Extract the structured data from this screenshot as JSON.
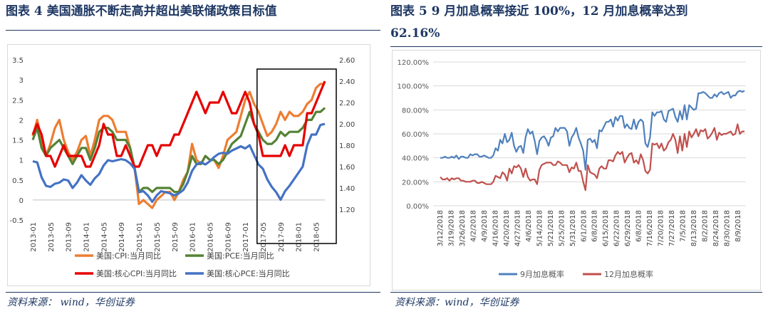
{
  "left": {
    "caption": "图表 4   美国通胀不断走高并超出美联储政策目标值",
    "source": "资料来源： wind，华创证券"
  },
  "right": {
    "caption_line1": "图表 5 9 月加息概率接近 100%，12 月加息概率达到",
    "caption_line2": "62.16%",
    "source": "资料来源：wind，华创证券"
  },
  "chart_data": [
    {
      "type": "line",
      "x": [
        "2013-01",
        "2013-02",
        "2013-03",
        "2013-04",
        "2013-05",
        "2013-06",
        "2013-07",
        "2013-08",
        "2013-09",
        "2013-10",
        "2013-11",
        "2013-12",
        "2014-01",
        "2014-02",
        "2014-03",
        "2014-04",
        "2014-05",
        "2014-06",
        "2014-07",
        "2014-08",
        "2014-09",
        "2014-10",
        "2014-11",
        "2014-12",
        "2015-01",
        "2015-02",
        "2015-03",
        "2015-04",
        "2015-05",
        "2015-06",
        "2015-07",
        "2015-08",
        "2015-09",
        "2015-10",
        "2015-11",
        "2015-12",
        "2016-01",
        "2016-02",
        "2016-03",
        "2016-04",
        "2016-05",
        "2016-06",
        "2016-07",
        "2016-08",
        "2016-09",
        "2016-10",
        "2016-11",
        "2016-12",
        "2017-01",
        "2017-02",
        "2017-03",
        "2017-04",
        "2017-05",
        "2017-06",
        "2017-07",
        "2017-08",
        "2017-09",
        "2017-10",
        "2017-11",
        "2017-12",
        "2018-01",
        "2018-02",
        "2018-03",
        "2018-04",
        "2018-05",
        "2018-06",
        "2018-07"
      ],
      "x_tick_labels": [
        "2013-01",
        "2013-05",
        "2013-09",
        "2014-01",
        "2014-05",
        "2014-09",
        "2015-01",
        "2015-05",
        "2015-09",
        "2016-01",
        "2016-05",
        "2016-09",
        "2017-01",
        "2017-05",
        "2017-09",
        "2018-01",
        "2018-05"
      ],
      "y_left_ticks": [
        "-0.5",
        "0",
        "0.5",
        "1",
        "1.5",
        "2",
        "2.5",
        "3",
        "3.5"
      ],
      "y_right_ticks": [
        "1.20",
        "1.40",
        "1.60",
        "1.80",
        "2.00",
        "2.20",
        "2.40",
        "2.60"
      ],
      "ylim_left": [
        -0.5,
        3.5
      ],
      "ylim_right": [
        1.1,
        2.6
      ],
      "legend_position": "bottom",
      "highlight_box_from": "2017-04",
      "series": [
        {
          "name": "美国:CPI:当月同比",
          "axis": "left",
          "color": "#ed7d31",
          "values": [
            1.6,
            2.0,
            1.5,
            1.1,
            1.4,
            1.8,
            2.0,
            1.5,
            1.2,
            1.0,
            1.2,
            1.5,
            1.6,
            1.1,
            1.5,
            2.0,
            2.1,
            2.1,
            2.0,
            1.7,
            1.7,
            1.7,
            1.3,
            0.8,
            -0.1,
            0.0,
            -0.1,
            -0.2,
            0.0,
            0.1,
            0.2,
            0.2,
            0.0,
            0.2,
            0.5,
            0.7,
            1.4,
            1.0,
            0.9,
            1.1,
            1.0,
            1.0,
            0.8,
            1.1,
            1.5,
            1.6,
            1.7,
            2.1,
            2.5,
            2.7,
            2.4,
            2.2,
            1.9,
            1.6,
            1.7,
            1.9,
            2.2,
            2.0,
            2.2,
            2.1,
            2.1,
            2.2,
            2.4,
            2.5,
            2.8,
            2.9,
            2.9
          ]
        },
        {
          "name": "美国:PCE:当月同比",
          "axis": "left",
          "color": "#548235",
          "values": [
            1.5,
            1.8,
            1.3,
            1.1,
            1.3,
            1.4,
            1.5,
            1.3,
            1.1,
            0.9,
            1.1,
            1.3,
            1.3,
            1.0,
            1.3,
            1.7,
            1.8,
            1.8,
            1.7,
            1.5,
            1.5,
            1.5,
            1.3,
            0.8,
            0.2,
            0.3,
            0.3,
            0.2,
            0.3,
            0.3,
            0.3,
            0.3,
            0.2,
            0.2,
            0.4,
            0.7,
            1.1,
            0.9,
            0.9,
            1.1,
            1.0,
            1.0,
            0.9,
            1.0,
            1.2,
            1.4,
            1.5,
            1.6,
            1.9,
            2.2,
            1.9,
            1.7,
            1.5,
            1.4,
            1.4,
            1.5,
            1.7,
            1.6,
            1.7,
            1.7,
            1.7,
            1.8,
            2.0,
            2.0,
            2.2,
            2.2,
            2.3
          ]
        },
        {
          "name": "美国:核心CPI:当月同比",
          "axis": "right",
          "color": "#e60000",
          "values": [
            1.9,
            2.0,
            1.9,
            1.7,
            1.7,
            1.6,
            1.7,
            1.8,
            1.7,
            1.7,
            1.7,
            1.7,
            1.6,
            1.6,
            1.7,
            1.8,
            2.0,
            1.9,
            1.9,
            1.7,
            1.7,
            1.8,
            1.7,
            1.6,
            1.6,
            1.7,
            1.8,
            1.8,
            1.7,
            1.8,
            1.8,
            1.8,
            1.9,
            1.9,
            2.0,
            2.1,
            2.2,
            2.3,
            2.2,
            2.1,
            2.2,
            2.2,
            2.2,
            2.3,
            2.2,
            2.1,
            2.1,
            2.2,
            2.3,
            2.2,
            2.0,
            1.9,
            1.7,
            1.7,
            1.7,
            1.7,
            1.7,
            1.8,
            1.7,
            1.8,
            1.8,
            1.8,
            2.1,
            2.1,
            2.2,
            2.3,
            2.4
          ]
        },
        {
          "name": "美国:核心PCE:当月同比",
          "axis": "right",
          "color": "#4472c4",
          "values": [
            1.65,
            1.64,
            1.5,
            1.42,
            1.41,
            1.44,
            1.45,
            1.48,
            1.47,
            1.4,
            1.45,
            1.52,
            1.47,
            1.43,
            1.49,
            1.53,
            1.61,
            1.66,
            1.65,
            1.66,
            1.67,
            1.66,
            1.63,
            1.58,
            1.36,
            1.37,
            1.33,
            1.27,
            1.33,
            1.37,
            1.36,
            1.35,
            1.33,
            1.35,
            1.38,
            1.45,
            1.56,
            1.62,
            1.64,
            1.62,
            1.65,
            1.69,
            1.72,
            1.73,
            1.72,
            1.75,
            1.77,
            1.79,
            1.77,
            1.8,
            1.71,
            1.62,
            1.58,
            1.48,
            1.41,
            1.36,
            1.29,
            1.37,
            1.42,
            1.48,
            1.54,
            1.6,
            1.8,
            1.9,
            1.9,
            1.99,
            2.0
          ]
        }
      ]
    },
    {
      "type": "line",
      "x_tick_labels": [
        "3/12/2018",
        "3/19/2018",
        "3/26/2018",
        "4/2/2018",
        "4/9/2018",
        "4/16/2018",
        "4/20/2018",
        "4/27/2018",
        "4/6/2018",
        "5/14/2018",
        "5/21/2018",
        "5/25/2018",
        "5/31/2018",
        "6/1/2018",
        "6/8/2018",
        "6/15/2018",
        "6/22/2018",
        "6/29/2018",
        "6/8/2018",
        "7/16/2018",
        "7/20/2018",
        "7/27/2018",
        "7/5/2018",
        "8/13/2018",
        "8/2/2018",
        "8/24/2018",
        "8/30/2018",
        "8/9/2018"
      ],
      "y_ticks": [
        "0.00%",
        "20.00%",
        "40.00%",
        "60.00%",
        "80.00%",
        "100.00%",
        "120.00%"
      ],
      "ylim": [
        0,
        120
      ],
      "grid": true,
      "legend_position": "bottom",
      "series": [
        {
          "name": "9月加息概率",
          "color": "#4f81bd",
          "values": [
            40,
            40,
            41,
            40,
            40,
            41,
            40,
            42,
            39,
            41,
            41,
            40,
            40,
            43,
            42,
            43,
            43,
            41,
            41,
            42,
            41,
            40,
            40,
            42,
            48,
            46,
            55,
            52,
            60,
            53,
            55,
            61,
            50,
            45,
            49,
            50,
            44,
            57,
            64,
            60,
            62,
            54,
            43,
            54,
            57,
            58,
            55,
            50,
            57,
            58,
            65,
            62,
            65,
            65,
            65,
            62,
            50,
            57,
            60,
            65,
            57,
            52,
            46,
            30,
            55,
            56,
            53,
            55,
            48,
            63,
            62,
            66,
            70,
            70,
            72,
            66,
            74,
            71,
            75,
            75,
            65,
            68,
            65,
            64,
            72,
            64,
            70,
            72,
            70,
            52,
            49,
            57,
            78,
            75,
            78,
            78,
            79,
            72,
            70,
            79,
            80,
            81,
            74,
            70,
            79,
            72,
            84,
            72,
            84,
            82,
            80,
            81,
            94,
            94,
            95,
            94,
            92,
            90,
            90,
            93,
            91,
            94,
            95,
            93,
            94,
            95,
            90,
            92,
            92,
            95,
            96,
            95,
            96
          ]
        },
        {
          "name": "12月加息概率",
          "color": "#c0504d",
          "values": [
            24,
            22,
            22,
            23,
            21,
            23,
            22,
            23,
            23,
            21,
            21,
            20,
            20,
            20,
            21,
            21,
            19,
            19,
            20,
            19,
            18,
            18,
            18,
            20,
            25,
            24,
            23,
            28,
            26,
            21,
            31,
            27,
            33,
            32,
            34,
            31,
            24,
            31,
            24,
            21,
            22,
            22,
            18,
            30,
            34,
            35,
            36,
            36,
            36,
            34,
            34,
            37,
            36,
            34,
            34,
            34,
            28,
            32,
            31,
            36,
            29,
            29,
            20,
            13,
            34,
            28,
            27,
            26,
            23,
            31,
            33,
            31,
            31,
            38,
            38,
            37,
            42,
            45,
            43,
            45,
            36,
            40,
            43,
            44,
            36,
            38,
            35,
            43,
            38,
            29,
            27,
            30,
            52,
            51,
            52,
            48,
            52,
            46,
            48,
            53,
            55,
            60,
            55,
            44,
            58,
            46,
            60,
            49,
            62,
            57,
            60,
            64,
            58,
            63,
            62,
            64,
            56,
            58,
            61,
            65,
            55,
            61,
            59,
            60,
            60,
            61,
            62,
            59,
            60,
            68,
            60,
            62,
            62
          ]
        }
      ]
    }
  ]
}
